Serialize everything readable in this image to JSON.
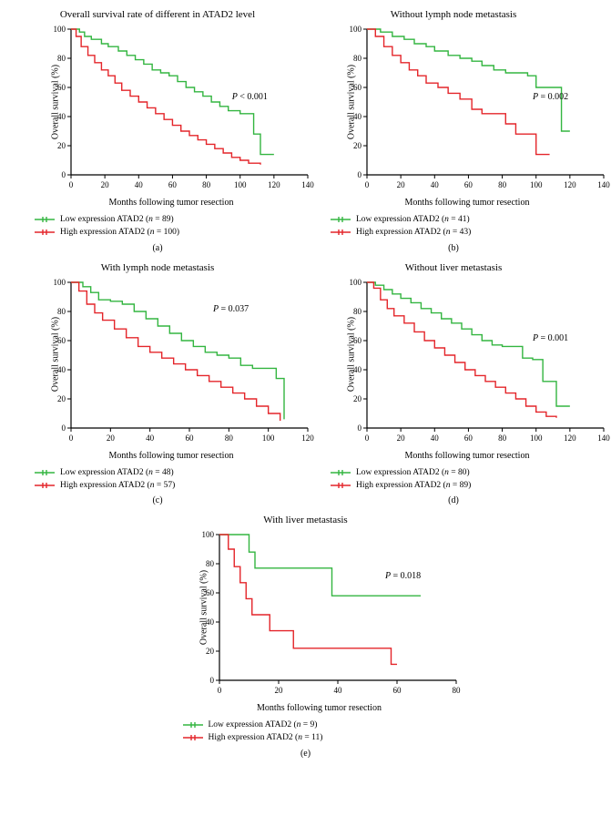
{
  "global": {
    "y_label": "Overall survival (%)",
    "x_label": "Months following tumor resection",
    "legend_low_prefix": "Low expression ATAD2 (",
    "legend_high_prefix": "High expression ATAD2 (",
    "legend_low_n_style": "italic",
    "legend_close": ")",
    "color_low": "#33b540",
    "color_high": "#e4252a",
    "axis_color": "#000000",
    "background_color": "#ffffff",
    "font_family": "Georgia, serif",
    "title_fontsize": 11,
    "label_fontsize": 10,
    "tick_fontsize": 9,
    "line_width": 1.4,
    "ylim": [
      0,
      100
    ],
    "y_ticks": [
      0,
      20,
      40,
      60,
      80,
      100
    ]
  },
  "panels": [
    {
      "id": "a",
      "title": "Overall survival rate of different in ATAD2 level",
      "p_text": "P < 0.001",
      "p_pos": [
        0.68,
        0.48
      ],
      "xlim": [
        0,
        140
      ],
      "x_ticks": [
        0,
        20,
        40,
        60,
        80,
        100,
        120,
        140
      ],
      "n_low": 89,
      "n_high": 100,
      "sub": "(a)",
      "low": [
        [
          0,
          100
        ],
        [
          5,
          98
        ],
        [
          8,
          95
        ],
        [
          12,
          93
        ],
        [
          18,
          90
        ],
        [
          22,
          88
        ],
        [
          28,
          85
        ],
        [
          33,
          82
        ],
        [
          38,
          79
        ],
        [
          43,
          76
        ],
        [
          48,
          72
        ],
        [
          53,
          70
        ],
        [
          58,
          68
        ],
        [
          63,
          64
        ],
        [
          68,
          60
        ],
        [
          73,
          57
        ],
        [
          78,
          54
        ],
        [
          83,
          50
        ],
        [
          88,
          47
        ],
        [
          93,
          44
        ],
        [
          100,
          42
        ],
        [
          105,
          42
        ],
        [
          108,
          28
        ],
        [
          112,
          14
        ],
        [
          120,
          14
        ]
      ],
      "high": [
        [
          0,
          100
        ],
        [
          3,
          95
        ],
        [
          6,
          88
        ],
        [
          10,
          82
        ],
        [
          14,
          77
        ],
        [
          18,
          72
        ],
        [
          22,
          68
        ],
        [
          26,
          63
        ],
        [
          30,
          58
        ],
        [
          35,
          54
        ],
        [
          40,
          50
        ],
        [
          45,
          46
        ],
        [
          50,
          42
        ],
        [
          55,
          38
        ],
        [
          60,
          34
        ],
        [
          65,
          30
        ],
        [
          70,
          27
        ],
        [
          75,
          24
        ],
        [
          80,
          21
        ],
        [
          85,
          18
        ],
        [
          90,
          15
        ],
        [
          95,
          12
        ],
        [
          100,
          10
        ],
        [
          105,
          8
        ],
        [
          112,
          7
        ]
      ]
    },
    {
      "id": "b",
      "title": "Without lymph node metastasis",
      "p_text": "P = 0.002",
      "p_pos": [
        0.7,
        0.48
      ],
      "xlim": [
        0,
        140
      ],
      "x_ticks": [
        0,
        20,
        40,
        60,
        80,
        100,
        120,
        140
      ],
      "n_low": 41,
      "n_high": 43,
      "sub": "(b)",
      "low": [
        [
          0,
          100
        ],
        [
          8,
          98
        ],
        [
          15,
          95
        ],
        [
          22,
          93
        ],
        [
          28,
          90
        ],
        [
          35,
          88
        ],
        [
          40,
          85
        ],
        [
          48,
          82
        ],
        [
          55,
          80
        ],
        [
          62,
          78
        ],
        [
          68,
          75
        ],
        [
          75,
          72
        ],
        [
          82,
          70
        ],
        [
          88,
          70
        ],
        [
          95,
          68
        ],
        [
          100,
          60
        ],
        [
          105,
          60
        ],
        [
          115,
          30
        ],
        [
          120,
          30
        ]
      ],
      "high": [
        [
          0,
          100
        ],
        [
          5,
          95
        ],
        [
          10,
          88
        ],
        [
          15,
          82
        ],
        [
          20,
          77
        ],
        [
          25,
          72
        ],
        [
          30,
          68
        ],
        [
          35,
          63
        ],
        [
          42,
          60
        ],
        [
          48,
          56
        ],
        [
          55,
          52
        ],
        [
          62,
          45
        ],
        [
          68,
          42
        ],
        [
          75,
          42
        ],
        [
          82,
          35
        ],
        [
          88,
          28
        ],
        [
          95,
          28
        ],
        [
          100,
          14
        ],
        [
          108,
          14
        ]
      ]
    },
    {
      "id": "c",
      "title": "With lymph node metastasis",
      "p_text": "P = 0.037",
      "p_pos": [
        0.6,
        0.2
      ],
      "xlim": [
        0,
        120
      ],
      "x_ticks": [
        0,
        20,
        40,
        60,
        80,
        100,
        120
      ],
      "n_low": 48,
      "n_high": 57,
      "sub": "(c)",
      "low": [
        [
          0,
          100
        ],
        [
          6,
          97
        ],
        [
          10,
          93
        ],
        [
          14,
          88
        ],
        [
          20,
          87
        ],
        [
          26,
          85
        ],
        [
          32,
          80
        ],
        [
          38,
          75
        ],
        [
          44,
          70
        ],
        [
          50,
          65
        ],
        [
          56,
          60
        ],
        [
          62,
          56
        ],
        [
          68,
          52
        ],
        [
          74,
          50
        ],
        [
          80,
          48
        ],
        [
          86,
          43
        ],
        [
          92,
          41
        ],
        [
          98,
          41
        ],
        [
          104,
          34
        ],
        [
          108,
          6
        ]
      ],
      "high": [
        [
          0,
          100
        ],
        [
          4,
          94
        ],
        [
          8,
          85
        ],
        [
          12,
          79
        ],
        [
          16,
          74
        ],
        [
          22,
          68
        ],
        [
          28,
          62
        ],
        [
          34,
          56
        ],
        [
          40,
          52
        ],
        [
          46,
          48
        ],
        [
          52,
          44
        ],
        [
          58,
          40
        ],
        [
          64,
          36
        ],
        [
          70,
          32
        ],
        [
          76,
          28
        ],
        [
          82,
          24
        ],
        [
          88,
          20
        ],
        [
          94,
          15
        ],
        [
          100,
          10
        ],
        [
          106,
          5
        ]
      ]
    },
    {
      "id": "d",
      "title": "Without liver metastasis",
      "p_text": "P = 0.001",
      "p_pos": [
        0.7,
        0.4
      ],
      "xlim": [
        0,
        140
      ],
      "x_ticks": [
        0,
        20,
        40,
        60,
        80,
        100,
        120,
        140
      ],
      "n_low": 80,
      "n_high": 89,
      "sub": "(d)",
      "low": [
        [
          0,
          100
        ],
        [
          5,
          98
        ],
        [
          10,
          95
        ],
        [
          15,
          92
        ],
        [
          20,
          89
        ],
        [
          26,
          86
        ],
        [
          32,
          82
        ],
        [
          38,
          79
        ],
        [
          44,
          75
        ],
        [
          50,
          72
        ],
        [
          56,
          68
        ],
        [
          62,
          64
        ],
        [
          68,
          60
        ],
        [
          74,
          57
        ],
        [
          80,
          56
        ],
        [
          86,
          56
        ],
        [
          92,
          48
        ],
        [
          98,
          47
        ],
        [
          104,
          32
        ],
        [
          112,
          15
        ],
        [
          120,
          15
        ]
      ],
      "high": [
        [
          0,
          100
        ],
        [
          4,
          96
        ],
        [
          8,
          88
        ],
        [
          12,
          82
        ],
        [
          16,
          77
        ],
        [
          22,
          72
        ],
        [
          28,
          66
        ],
        [
          34,
          60
        ],
        [
          40,
          55
        ],
        [
          46,
          50
        ],
        [
          52,
          45
        ],
        [
          58,
          40
        ],
        [
          64,
          36
        ],
        [
          70,
          32
        ],
        [
          76,
          28
        ],
        [
          82,
          24
        ],
        [
          88,
          20
        ],
        [
          94,
          15
        ],
        [
          100,
          11
        ],
        [
          106,
          8
        ],
        [
          112,
          7
        ]
      ]
    },
    {
      "id": "e",
      "title": "With liver metastasis",
      "p_text": "P = 0.018",
      "p_pos": [
        0.7,
        0.3
      ],
      "xlim": [
        0,
        80
      ],
      "x_ticks": [
        0,
        20,
        40,
        60,
        80
      ],
      "n_low": 9,
      "n_high": 11,
      "sub": "(e)",
      "low": [
        [
          0,
          100
        ],
        [
          5,
          100
        ],
        [
          8,
          100
        ],
        [
          10,
          88
        ],
        [
          12,
          77
        ],
        [
          15,
          77
        ],
        [
          30,
          77
        ],
        [
          35,
          77
        ],
        [
          38,
          58
        ],
        [
          50,
          58
        ],
        [
          68,
          58
        ]
      ],
      "high": [
        [
          0,
          100
        ],
        [
          3,
          90
        ],
        [
          5,
          78
        ],
        [
          7,
          67
        ],
        [
          9,
          56
        ],
        [
          11,
          45
        ],
        [
          14,
          45
        ],
        [
          17,
          34
        ],
        [
          22,
          34
        ],
        [
          25,
          22
        ],
        [
          40,
          22
        ],
        [
          55,
          22
        ],
        [
          58,
          11
        ],
        [
          60,
          11
        ]
      ]
    }
  ]
}
